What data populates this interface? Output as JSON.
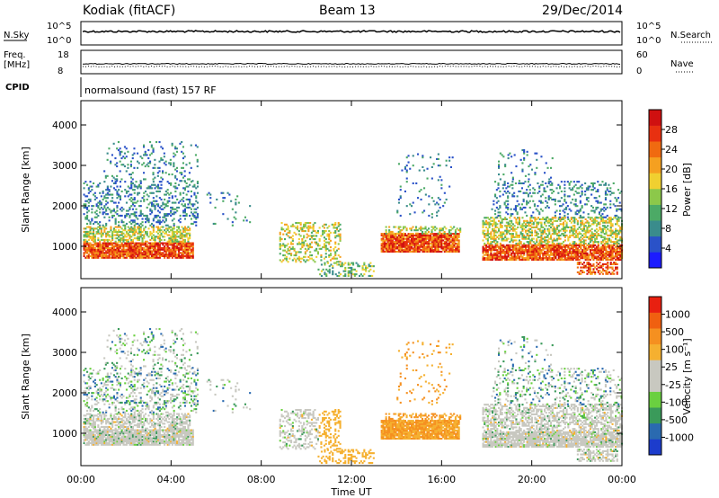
{
  "header": {
    "station": "Kodiak (fitACF)",
    "beam": "Beam 13",
    "date": "29/Dec/2014",
    "cpid_label": "CPID",
    "cpid_value": "normalsound (fast) 157 RF"
  },
  "strip_labels": {
    "nsky": "N.Sky",
    "nsearch": "N.Search",
    "freq": "Freq.",
    "freq_unit": "[MHz]",
    "nave": "Nave",
    "nsky_ticks": [
      "10^5",
      "10^0"
    ],
    "nsearch_ticks": [
      "10^5",
      "10^0"
    ],
    "freq_ticks": [
      "18",
      "8"
    ],
    "nave_ticks": [
      "60",
      "0"
    ]
  },
  "chart_data": [
    {
      "type": "heatmap",
      "name": "power",
      "ylabel": "Slant Range [km]",
      "xlabel": "Time UT",
      "x_ticks": [
        "00:00",
        "04:00",
        "08:00",
        "12:00",
        "16:00",
        "20:00",
        "00:00"
      ],
      "y_ticks": [
        "1000",
        "2000",
        "3000",
        "4000"
      ],
      "ylim": [
        200,
        4600
      ],
      "xlim_hours": [
        0,
        24
      ],
      "colorbar": {
        "label": "Power [dB]",
        "ticks": [
          "28",
          "24",
          "20",
          "16",
          "12",
          "8",
          "4"
        ],
        "colors": [
          "#1c1cff",
          "#2a52c8",
          "#3a8c8c",
          "#4caa66",
          "#8cc84a",
          "#f0d030",
          "#f5a020",
          "#f06a10",
          "#e83010",
          "#d01010"
        ]
      }
    },
    {
      "type": "heatmap",
      "name": "velocity",
      "ylabel": "Slant Range [km]",
      "xlabel": "Time UT",
      "x_ticks": [
        "00:00",
        "04:00",
        "08:00",
        "12:00",
        "16:00",
        "20:00",
        "00:00"
      ],
      "y_ticks": [
        "1000",
        "2000",
        "3000",
        "4000"
      ],
      "ylim": [
        200,
        4600
      ],
      "xlim_hours": [
        0,
        24
      ],
      "colorbar": {
        "label": "Velocity [m s⁻¹]",
        "ticks": [
          "1000",
          "500",
          "100",
          "25",
          "-25",
          "-100",
          "-500",
          "-1000"
        ],
        "colors": [
          "#1c3ccc",
          "#2a6ab0",
          "#3a9a5a",
          "#6ad040",
          "#c8c8c0",
          "#c8c8c0",
          "#f5b030",
          "#f59020",
          "#f06010",
          "#e82010"
        ]
      }
    }
  ]
}
